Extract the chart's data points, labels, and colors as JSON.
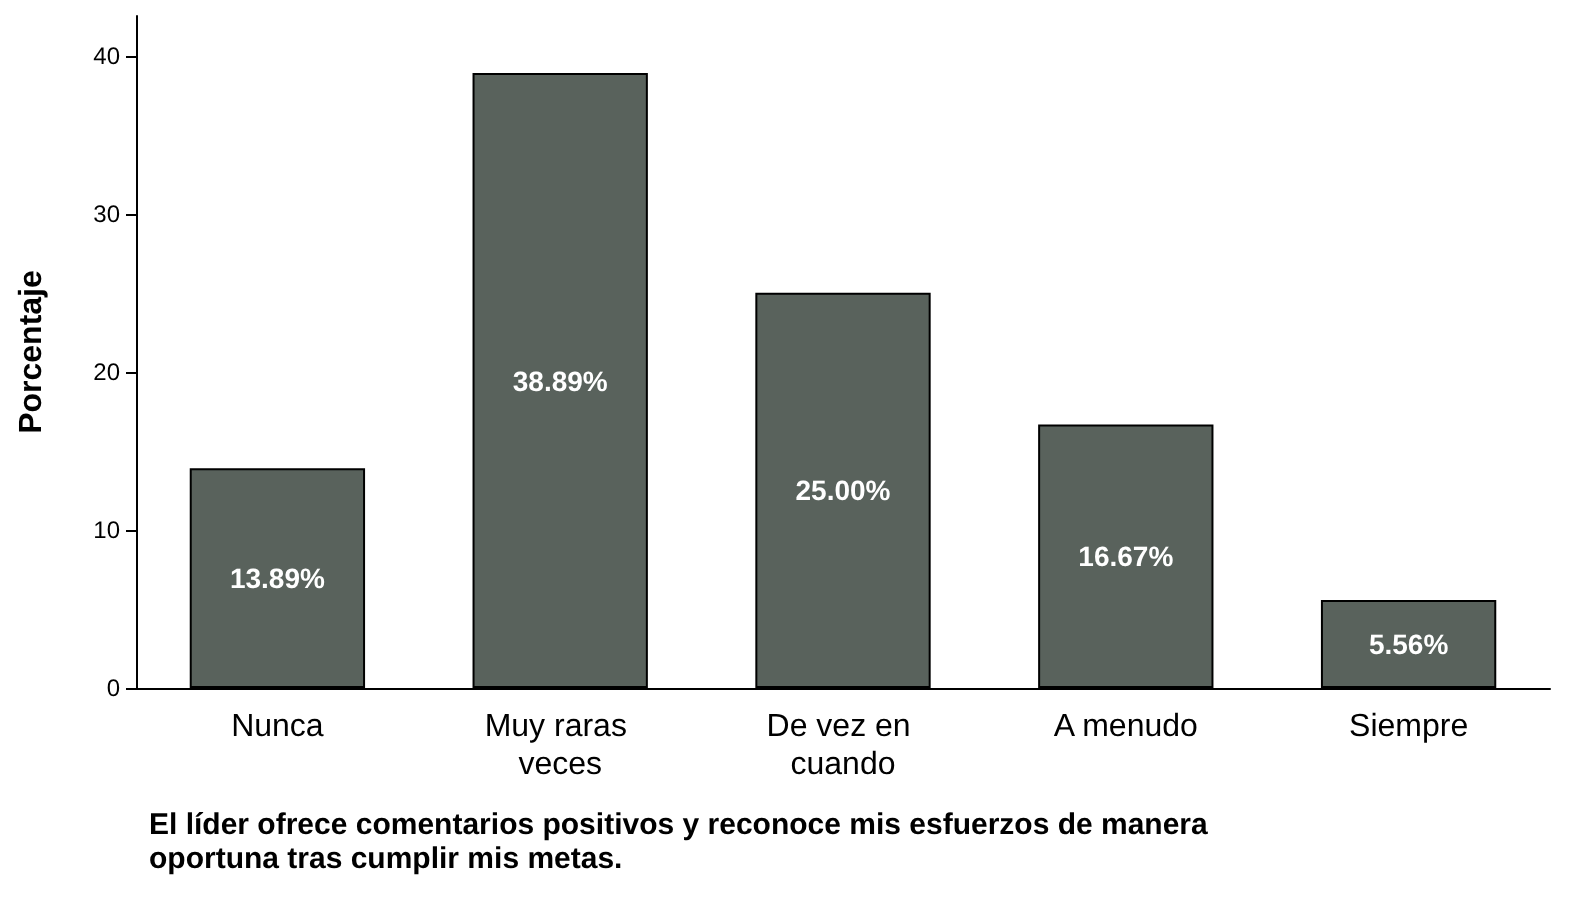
{
  "chart_data": {
    "type": "bar",
    "xlabel": "El líder ofrece comentarios positivos y reconoce mis esfuerzos de manera oportuna tras cumplir mis metas.",
    "ylabel": "Porcentaje",
    "categories": [
      "Nunca",
      "Muy raras veces",
      "De vez en cuando",
      "A menudo",
      "Siempre"
    ],
    "values": [
      13.89,
      38.89,
      25.0,
      16.67,
      5.56
    ],
    "value_labels": [
      "13.89%",
      "38.89%",
      "25.00%",
      "16.67%",
      "5.56%"
    ],
    "color": "#59625c",
    "ylim": [
      0,
      42.5
    ],
    "yticks": [
      0,
      10,
      20,
      30,
      40
    ],
    "grid": false
  }
}
